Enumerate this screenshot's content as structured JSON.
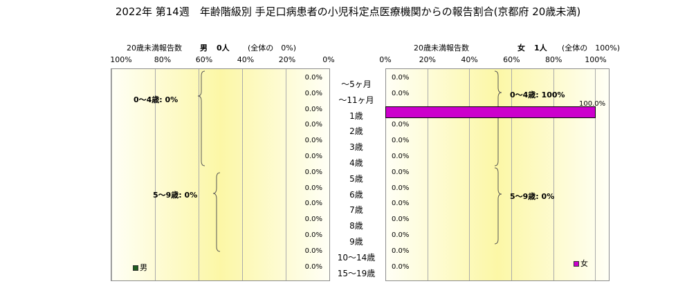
{
  "title": "2022年 第14週　年齢階級別 手足口病患者の小児科定点医療機関からの報告割合(京都府 20歳未満)",
  "male_header": {
    "caption": "20歳未満報告数",
    "sex": "男",
    "count": "0人",
    "share": "(全体の　0%)"
  },
  "female_header": {
    "caption": "20歳未満報告数",
    "sex": "女",
    "count": "1人",
    "share": "(全体の　100%)"
  },
  "male_brackets": {
    "g0_4": "0～4歳: 0%",
    "g5_9": "5～9歳: 0%"
  },
  "female_brackets": {
    "g0_4": "0～4歳: 100%",
    "g5_9": "5～9歳: 0%"
  },
  "legend": {
    "male": "男",
    "female": "女"
  },
  "colors": {
    "male": "#1e5e1e",
    "female": "#cc00cc"
  },
  "chart_data": {
    "type": "bar",
    "orientation": "horizontal-butterfly",
    "categories": [
      "～5ヶ月",
      "～11ヶ月",
      "1歳",
      "2歳",
      "3歳",
      "4歳",
      "5歳",
      "6歳",
      "7歳",
      "8歳",
      "9歳",
      "10～14歳",
      "15～19歳"
    ],
    "x_ticks_male": [
      "100%",
      "80%",
      "60%",
      "40%",
      "20%",
      "0%"
    ],
    "x_ticks_female": [
      "0%",
      "20%",
      "40%",
      "60%",
      "80%",
      "100%"
    ],
    "xlim": [
      0,
      100
    ],
    "series": [
      {
        "name": "男",
        "values": [
          0,
          0,
          0,
          0,
          0,
          0,
          0,
          0,
          0,
          0,
          0,
          0,
          0
        ],
        "labels": [
          "0.0%",
          "0.0%",
          "0.0%",
          "0.0%",
          "0.0%",
          "0.0%",
          "0.0%",
          "0.0%",
          "0.0%",
          "0.0%",
          "0.0%",
          "0.0%",
          "0.0%"
        ]
      },
      {
        "name": "女",
        "values": [
          0,
          0,
          100,
          0,
          0,
          0,
          0,
          0,
          0,
          0,
          0,
          0,
          0
        ],
        "labels": [
          "0.0%",
          "0.0%",
          "100.0%",
          "0.0%",
          "0.0%",
          "0.0%",
          "0.0%",
          "0.0%",
          "0.0%",
          "0.0%",
          "0.0%",
          "0.0%",
          "0.0%"
        ]
      }
    ]
  }
}
